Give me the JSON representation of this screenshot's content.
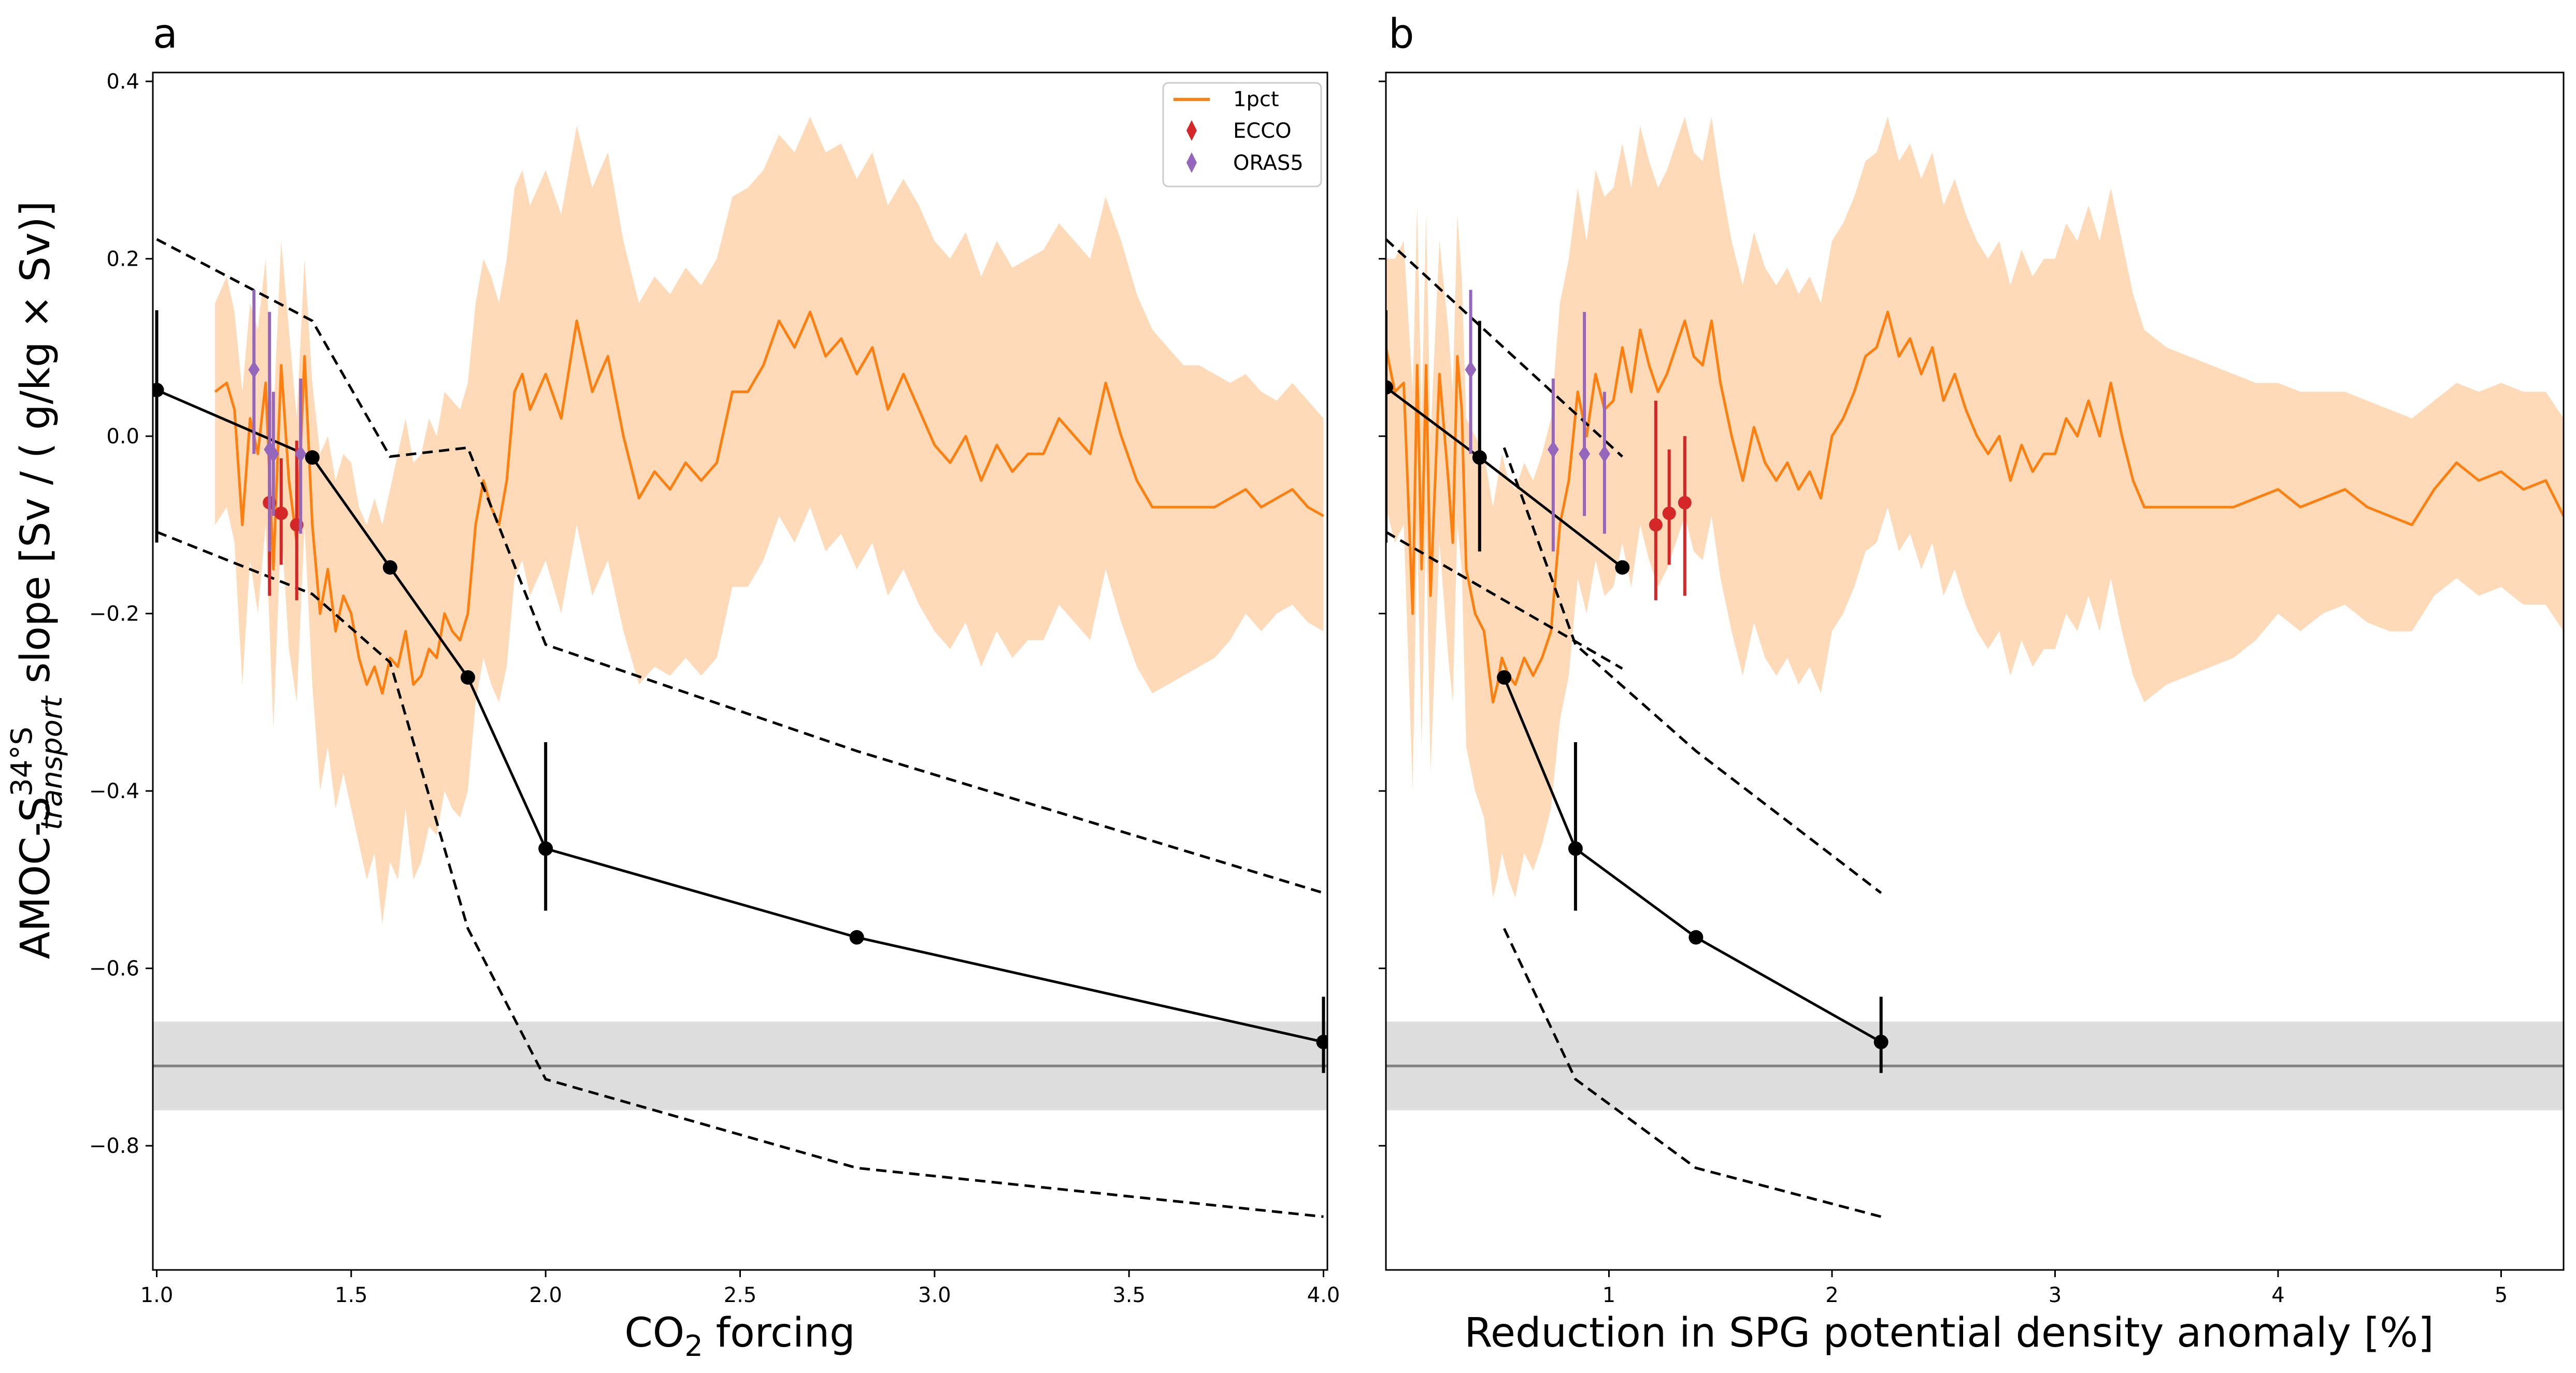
{
  "figure": {
    "ylabel_prefix": "AMOC-S",
    "ylabel_sup": "34°S",
    "ylabel_sub": "transport",
    "ylabel_suffix": " slope [Sv / ( g/kg × Sv)]",
    "colors": {
      "model": "#ff7f0e",
      "model_band": "#ffdab9",
      "ecco": "#d62728",
      "oras5": "#9467bd",
      "fit": "#000000",
      "obs_band": "#dddddd",
      "obs_line": "#808080"
    }
  },
  "chart_data": [
    {
      "type": "line",
      "panel_label": "a",
      "xlabel_main": "CO",
      "xlabel_sub": "2",
      "xlabel_tail": " forcing",
      "xlim": [
        0.99,
        4.01
      ],
      "ylim": [
        -0.94,
        0.41
      ],
      "xticks": [
        "1.0",
        "1.5",
        "2.0",
        "2.5",
        "3.0",
        "3.5",
        "4.0"
      ],
      "xtick_values": [
        1.0,
        1.5,
        2.0,
        2.5,
        3.0,
        3.5,
        4.0
      ],
      "yticks": [
        "0.4",
        "0.2",
        "0.0",
        "−0.2",
        "−0.4",
        "−0.6",
        "−0.8"
      ],
      "ytick_values": [
        0.4,
        0.2,
        0.0,
        -0.2,
        -0.4,
        -0.6,
        -0.8
      ],
      "legend": {
        "placement": "top-right",
        "entries": [
          {
            "label": "1pct",
            "marker": "line",
            "color": "#ff7f0e"
          },
          {
            "label": "ECCO",
            "marker": "diamond",
            "color": "#d62728"
          },
          {
            "label": "ORAS5",
            "marker": "diamond",
            "color": "#9467bd"
          }
        ]
      },
      "obs_band": {
        "low": -0.76,
        "high": -0.66,
        "center": -0.71
      },
      "model_series": {
        "name": "1pct",
        "x": [
          1.15,
          1.18,
          1.2,
          1.22,
          1.24,
          1.26,
          1.28,
          1.3,
          1.32,
          1.34,
          1.36,
          1.38,
          1.4,
          1.42,
          1.44,
          1.46,
          1.48,
          1.5,
          1.52,
          1.54,
          1.56,
          1.58,
          1.6,
          1.62,
          1.64,
          1.66,
          1.68,
          1.7,
          1.72,
          1.74,
          1.76,
          1.78,
          1.8,
          1.82,
          1.84,
          1.86,
          1.88,
          1.9,
          1.92,
          1.94,
          1.96,
          1.98,
          2.0,
          2.04,
          2.08,
          2.12,
          2.16,
          2.2,
          2.24,
          2.28,
          2.32,
          2.36,
          2.4,
          2.44,
          2.48,
          2.52,
          2.56,
          2.6,
          2.64,
          2.68,
          2.72,
          2.76,
          2.8,
          2.84,
          2.88,
          2.92,
          2.96,
          3.0,
          3.04,
          3.08,
          3.12,
          3.16,
          3.2,
          3.24,
          3.28,
          3.32,
          3.36,
          3.4,
          3.44,
          3.48,
          3.52,
          3.56,
          3.6,
          3.64,
          3.68,
          3.72,
          3.76,
          3.8,
          3.84,
          3.88,
          3.92,
          3.96,
          4.0
        ],
        "y": [
          0.05,
          0.06,
          0.03,
          -0.1,
          0.02,
          -0.02,
          0.06,
          -0.15,
          0.08,
          -0.05,
          -0.12,
          0.09,
          -0.1,
          -0.2,
          -0.15,
          -0.22,
          -0.18,
          -0.2,
          -0.25,
          -0.28,
          -0.26,
          -0.29,
          -0.25,
          -0.26,
          -0.22,
          -0.28,
          -0.27,
          -0.24,
          -0.25,
          -0.2,
          -0.22,
          -0.23,
          -0.2,
          -0.1,
          -0.05,
          -0.08,
          -0.1,
          -0.05,
          0.05,
          0.07,
          0.03,
          0.05,
          0.07,
          0.02,
          0.13,
          0.05,
          0.09,
          0.0,
          -0.07,
          -0.04,
          -0.06,
          -0.03,
          -0.05,
          -0.03,
          0.05,
          0.05,
          0.08,
          0.13,
          0.1,
          0.14,
          0.09,
          0.11,
          0.07,
          0.1,
          0.03,
          0.07,
          0.03,
          -0.01,
          -0.03,
          0.0,
          -0.05,
          -0.01,
          -0.04,
          -0.02,
          -0.02,
          0.02,
          0.0,
          -0.02,
          0.06,
          0.0,
          -0.05,
          -0.08,
          -0.08,
          -0.08,
          -0.08,
          -0.08,
          -0.07,
          -0.06,
          -0.08,
          -0.07,
          -0.06,
          -0.08,
          -0.09
        ],
        "upper": [
          0.15,
          0.18,
          0.14,
          0.05,
          0.15,
          0.12,
          0.2,
          0.02,
          0.22,
          0.12,
          0.02,
          0.2,
          0.06,
          -0.02,
          0.0,
          -0.05,
          -0.02,
          -0.03,
          -0.08,
          -0.1,
          -0.07,
          -0.1,
          -0.06,
          -0.02,
          0.02,
          -0.03,
          -0.02,
          0.02,
          0.0,
          0.05,
          0.04,
          0.03,
          0.06,
          0.15,
          0.2,
          0.18,
          0.15,
          0.2,
          0.28,
          0.3,
          0.26,
          0.28,
          0.3,
          0.25,
          0.35,
          0.28,
          0.32,
          0.22,
          0.15,
          0.18,
          0.16,
          0.19,
          0.17,
          0.2,
          0.27,
          0.28,
          0.3,
          0.34,
          0.32,
          0.36,
          0.32,
          0.33,
          0.29,
          0.32,
          0.26,
          0.29,
          0.26,
          0.22,
          0.2,
          0.23,
          0.18,
          0.22,
          0.19,
          0.2,
          0.21,
          0.24,
          0.22,
          0.2,
          0.27,
          0.22,
          0.16,
          0.12,
          0.1,
          0.08,
          0.08,
          0.07,
          0.06,
          0.07,
          0.05,
          0.04,
          0.06,
          0.04,
          0.02
        ],
        "lower": [
          -0.1,
          -0.08,
          -0.12,
          -0.28,
          -0.14,
          -0.2,
          -0.1,
          -0.33,
          -0.1,
          -0.24,
          -0.3,
          -0.1,
          -0.28,
          -0.4,
          -0.35,
          -0.42,
          -0.38,
          -0.42,
          -0.46,
          -0.5,
          -0.47,
          -0.55,
          -0.48,
          -0.5,
          -0.42,
          -0.5,
          -0.48,
          -0.44,
          -0.45,
          -0.4,
          -0.42,
          -0.43,
          -0.4,
          -0.3,
          -0.25,
          -0.28,
          -0.3,
          -0.26,
          -0.16,
          -0.14,
          -0.18,
          -0.16,
          -0.14,
          -0.2,
          -0.1,
          -0.18,
          -0.14,
          -0.22,
          -0.28,
          -0.26,
          -0.27,
          -0.25,
          -0.27,
          -0.25,
          -0.17,
          -0.17,
          -0.14,
          -0.09,
          -0.12,
          -0.08,
          -0.13,
          -0.11,
          -0.15,
          -0.12,
          -0.18,
          -0.15,
          -0.19,
          -0.22,
          -0.24,
          -0.21,
          -0.26,
          -0.22,
          -0.25,
          -0.23,
          -0.23,
          -0.19,
          -0.21,
          -0.23,
          -0.15,
          -0.21,
          -0.26,
          -0.29,
          -0.28,
          -0.27,
          -0.26,
          -0.25,
          -0.23,
          -0.2,
          -0.22,
          -0.2,
          -0.19,
          -0.21,
          -0.22
        ]
      },
      "fit_points": {
        "x": [
          1.0,
          1.4,
          1.6,
          1.8,
          2.0,
          2.8,
          4.0
        ],
        "y": [
          0.052,
          -0.024,
          -0.148,
          -0.272,
          -0.465,
          -0.565,
          -0.683
        ],
        "err_low": [
          -0.12,
          null,
          null,
          null,
          -0.535,
          null,
          -0.718
        ],
        "err_high": [
          0.142,
          0.13,
          null,
          null,
          -0.345,
          null,
          -0.632
        ]
      },
      "fit_upper": {
        "x": [
          1.0,
          1.4,
          1.6,
          1.8,
          2.0,
          2.8,
          4.0
        ],
        "y": [
          0.222,
          0.13,
          -0.023,
          -0.013,
          -0.235,
          -0.355,
          -0.515
        ]
      },
      "fit_lower": {
        "x": [
          1.0,
          1.4,
          1.6,
          1.8,
          2.0,
          2.8,
          4.0
        ],
        "y": [
          -0.108,
          -0.178,
          -0.255,
          -0.555,
          -0.725,
          -0.825,
          -0.88
        ]
      },
      "ecco": {
        "x": [
          1.29,
          1.32,
          1.36
        ],
        "y": [
          -0.075,
          -0.087,
          -0.1
        ],
        "err_low": [
          -0.18,
          -0.145,
          -0.185
        ],
        "err_high": [
          0.04,
          -0.025,
          -0.005
        ]
      },
      "oras5": {
        "x": [
          1.25,
          1.29,
          1.3,
          1.37
        ],
        "y": [
          0.075,
          -0.015,
          -0.02,
          -0.02
        ],
        "err_low": [
          -0.02,
          -0.13,
          -0.09,
          -0.11
        ],
        "err_high": [
          0.165,
          0.14,
          0.05,
          0.065
        ]
      }
    },
    {
      "type": "line",
      "panel_label": "b",
      "xlabel_main": "Reduction in SPG potential density anomaly [%]",
      "xlim": [
        0.0,
        5.28
      ],
      "ylim": [
        -0.94,
        0.41
      ],
      "xticks": [
        "1",
        "2",
        "3",
        "4",
        "5"
      ],
      "xtick_values": [
        1,
        2,
        3,
        4,
        5
      ],
      "obs_band": {
        "low": -0.76,
        "high": -0.66,
        "center": -0.71
      },
      "model_series": {
        "name": "1pct",
        "x": [
          0.0,
          0.04,
          0.08,
          0.12,
          0.14,
          0.16,
          0.18,
          0.2,
          0.24,
          0.28,
          0.3,
          0.32,
          0.34,
          0.36,
          0.4,
          0.44,
          0.48,
          0.5,
          0.52,
          0.55,
          0.58,
          0.62,
          0.66,
          0.7,
          0.74,
          0.78,
          0.82,
          0.86,
          0.9,
          0.94,
          0.98,
          1.02,
          1.06,
          1.1,
          1.14,
          1.18,
          1.22,
          1.26,
          1.3,
          1.34,
          1.38,
          1.42,
          1.46,
          1.5,
          1.55,
          1.6,
          1.65,
          1.7,
          1.75,
          1.8,
          1.85,
          1.9,
          1.95,
          2.0,
          2.05,
          2.1,
          2.15,
          2.2,
          2.25,
          2.3,
          2.35,
          2.4,
          2.45,
          2.5,
          2.55,
          2.6,
          2.65,
          2.7,
          2.75,
          2.8,
          2.85,
          2.9,
          2.95,
          3.0,
          3.05,
          3.1,
          3.15,
          3.2,
          3.25,
          3.3,
          3.35,
          3.4,
          3.5,
          3.6,
          3.7,
          3.8,
          3.9,
          4.0,
          4.1,
          4.2,
          4.3,
          4.4,
          4.5,
          4.6,
          4.7,
          4.8,
          4.9,
          5.0,
          5.1,
          5.2,
          5.28
        ],
        "y": [
          0.1,
          0.05,
          0.06,
          -0.2,
          0.08,
          -0.15,
          0.08,
          -0.18,
          0.07,
          -0.05,
          -0.12,
          0.09,
          0.03,
          -0.15,
          -0.2,
          -0.22,
          -0.3,
          -0.28,
          -0.25,
          -0.27,
          -0.28,
          -0.25,
          -0.27,
          -0.25,
          -0.22,
          -0.1,
          -0.05,
          0.05,
          0.0,
          0.07,
          0.03,
          0.04,
          0.1,
          0.05,
          0.12,
          0.08,
          0.05,
          0.07,
          0.1,
          0.13,
          0.09,
          0.08,
          0.13,
          0.06,
          0.0,
          -0.05,
          0.01,
          -0.03,
          -0.05,
          -0.03,
          -0.06,
          -0.04,
          -0.07,
          0.0,
          0.02,
          0.05,
          0.09,
          0.1,
          0.14,
          0.09,
          0.11,
          0.07,
          0.1,
          0.04,
          0.07,
          0.03,
          0.0,
          -0.02,
          0.0,
          -0.05,
          -0.01,
          -0.04,
          -0.02,
          -0.02,
          0.02,
          0.0,
          0.04,
          0.0,
          0.06,
          0.0,
          -0.05,
          -0.08,
          -0.08,
          -0.08,
          -0.08,
          -0.08,
          -0.07,
          -0.06,
          -0.08,
          -0.07,
          -0.06,
          -0.08,
          -0.09,
          -0.1,
          -0.06,
          -0.03,
          -0.05,
          -0.04,
          -0.06,
          -0.05,
          -0.09
        ],
        "upper": [
          0.2,
          0.2,
          0.22,
          0.05,
          0.26,
          0.02,
          0.25,
          0.0,
          0.22,
          0.12,
          0.05,
          0.25,
          0.18,
          0.02,
          0.0,
          -0.02,
          -0.08,
          -0.05,
          -0.02,
          -0.05,
          -0.06,
          -0.03,
          -0.05,
          -0.02,
          0.02,
          0.15,
          0.2,
          0.28,
          0.22,
          0.3,
          0.27,
          0.28,
          0.33,
          0.28,
          0.35,
          0.31,
          0.28,
          0.3,
          0.33,
          0.36,
          0.32,
          0.31,
          0.36,
          0.29,
          0.22,
          0.17,
          0.23,
          0.19,
          0.17,
          0.19,
          0.16,
          0.18,
          0.15,
          0.22,
          0.24,
          0.27,
          0.31,
          0.32,
          0.36,
          0.31,
          0.33,
          0.29,
          0.32,
          0.26,
          0.29,
          0.25,
          0.22,
          0.2,
          0.22,
          0.17,
          0.21,
          0.18,
          0.2,
          0.2,
          0.24,
          0.22,
          0.26,
          0.22,
          0.28,
          0.22,
          0.16,
          0.12,
          0.1,
          0.09,
          0.08,
          0.07,
          0.06,
          0.06,
          0.05,
          0.05,
          0.05,
          0.04,
          0.03,
          0.02,
          0.04,
          0.06,
          0.05,
          0.06,
          0.05,
          0.05,
          0.02
        ],
        "lower": [
          -0.08,
          -0.12,
          -0.1,
          -0.4,
          -0.1,
          -0.35,
          -0.1,
          -0.38,
          -0.12,
          -0.25,
          -0.3,
          -0.1,
          -0.15,
          -0.35,
          -0.4,
          -0.43,
          -0.52,
          -0.5,
          -0.47,
          -0.5,
          -0.52,
          -0.47,
          -0.49,
          -0.46,
          -0.42,
          -0.32,
          -0.27,
          -0.16,
          -0.2,
          -0.14,
          -0.18,
          -0.17,
          -0.12,
          -0.17,
          -0.1,
          -0.14,
          -0.17,
          -0.15,
          -0.12,
          -0.09,
          -0.13,
          -0.14,
          -0.09,
          -0.16,
          -0.22,
          -0.27,
          -0.21,
          -0.25,
          -0.27,
          -0.25,
          -0.28,
          -0.26,
          -0.29,
          -0.22,
          -0.2,
          -0.17,
          -0.13,
          -0.12,
          -0.08,
          -0.13,
          -0.11,
          -0.15,
          -0.12,
          -0.18,
          -0.15,
          -0.19,
          -0.22,
          -0.24,
          -0.22,
          -0.27,
          -0.23,
          -0.26,
          -0.24,
          -0.24,
          -0.2,
          -0.22,
          -0.18,
          -0.22,
          -0.16,
          -0.22,
          -0.27,
          -0.3,
          -0.28,
          -0.27,
          -0.26,
          -0.25,
          -0.23,
          -0.2,
          -0.22,
          -0.2,
          -0.19,
          -0.21,
          -0.22,
          -0.22,
          -0.18,
          -0.16,
          -0.18,
          -0.17,
          -0.19,
          -0.19,
          -0.22
        ]
      },
      "fit_group1": {
        "x": [
          0.0,
          0.42,
          1.06
        ],
        "y": [
          0.055,
          -0.024,
          -0.148
        ],
        "err_low": [
          -0.12,
          -0.13,
          null
        ],
        "err_high": [
          0.142,
          0.13,
          null
        ]
      },
      "fit_group2": {
        "x": [
          0.53,
          0.85,
          1.39,
          2.22
        ],
        "y": [
          -0.272,
          -0.465,
          -0.565,
          -0.683
        ],
        "err_low": [
          null,
          -0.535,
          null,
          -0.718
        ],
        "err_high": [
          null,
          -0.345,
          null,
          -0.632
        ]
      },
      "dash_segments": [
        {
          "x": [
            0.0,
            1.06
          ],
          "y": [
            0.222,
            -0.023
          ]
        },
        {
          "x": [
            0.0,
            1.06
          ],
          "y": [
            -0.108,
            -0.262
          ]
        },
        {
          "x": [
            0.53,
            0.85,
            1.39,
            2.22
          ],
          "y": [
            -0.013,
            -0.235,
            -0.355,
            -0.515
          ]
        },
        {
          "x": [
            0.53,
            0.85,
            1.39,
            2.22
          ],
          "y": [
            -0.555,
            -0.725,
            -0.825,
            -0.88
          ]
        }
      ],
      "ecco": {
        "x": [
          1.21,
          1.27,
          1.34
        ],
        "y": [
          -0.1,
          -0.087,
          -0.075
        ],
        "err_low": [
          -0.185,
          -0.145,
          -0.18
        ],
        "err_high": [
          0.04,
          -0.015,
          0.0
        ]
      },
      "oras5": {
        "x": [
          0.38,
          0.75,
          0.89,
          0.98
        ],
        "y": [
          0.075,
          -0.015,
          -0.02,
          -0.02
        ],
        "err_low": [
          -0.02,
          -0.13,
          -0.09,
          -0.11
        ],
        "err_high": [
          0.165,
          0.065,
          0.14,
          0.05
        ]
      }
    }
  ]
}
